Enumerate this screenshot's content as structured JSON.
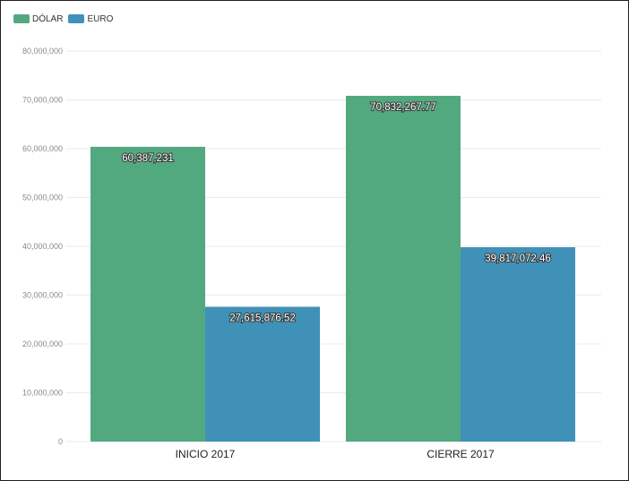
{
  "chart_data": {
    "type": "bar",
    "categories": [
      "INICIO 2017",
      "CIERRE 2017"
    ],
    "series": [
      {
        "name": "DÓLAR",
        "color": "#52a97f",
        "values": [
          60387231,
          70832267.77
        ],
        "labels": [
          "60,387,231",
          "70,832,267.77"
        ]
      },
      {
        "name": "EURO",
        "color": "#3f91b8",
        "values": [
          27615876.52,
          39817072.46
        ],
        "labels": [
          "27,615,876.52",
          "39,817,072.46"
        ]
      }
    ],
    "ylim": [
      0,
      80000000
    ],
    "yticks": [
      0,
      10000000,
      20000000,
      30000000,
      40000000,
      50000000,
      60000000,
      70000000,
      80000000
    ],
    "ytick_labels": [
      "0",
      "10,000,000",
      "20,000,000",
      "30,000,000",
      "40,000,000",
      "50,000,000",
      "60,000,000",
      "70,000,000",
      "80,000,000"
    ],
    "grid": true,
    "legend_position": "top-left"
  }
}
